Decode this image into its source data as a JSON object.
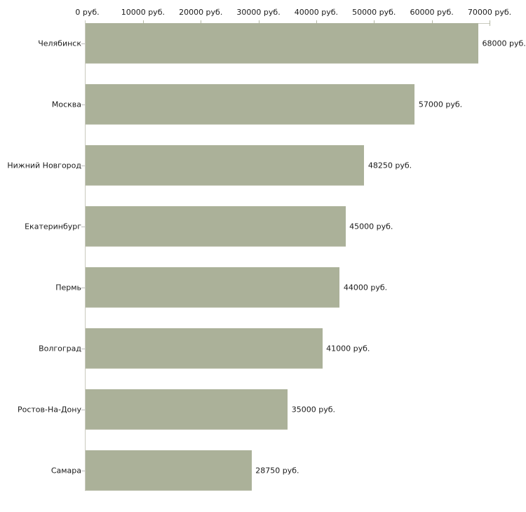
{
  "chart_data": {
    "type": "bar",
    "orientation": "horizontal",
    "title": "",
    "xlabel": "",
    "ylabel": "",
    "unit": "руб.",
    "categories": [
      "Челябинск",
      "Москва",
      "Нижний Новгород",
      "Екатеринбург",
      "Пермь",
      "Волгоград",
      "Ростов-На-Дону",
      "Самара"
    ],
    "values": [
      68000,
      57000,
      48250,
      45000,
      44000,
      41000,
      35000,
      28750
    ],
    "bar_value_labels": [
      "68000 руб.",
      "57000 руб.",
      "48250 руб.",
      "45000 руб.",
      "44000 руб.",
      "41000 руб.",
      "35000 руб.",
      "28750 руб."
    ],
    "xlim": [
      0,
      70000
    ],
    "x_ticks": [
      0,
      10000,
      20000,
      30000,
      40000,
      50000,
      60000,
      70000
    ],
    "x_tick_labels": [
      "0 руб.",
      "10000 руб.",
      "20000 руб.",
      "30000 руб.",
      "40000 руб.",
      "50000 руб.",
      "60000 руб.",
      "70000 руб."
    ],
    "axis_position": "top",
    "grid": false,
    "legend": null,
    "colors": {
      "bar_fill": "#abb199",
      "bar_bottom_edge": "#d2d4c7",
      "axis_line": "#c9cabe",
      "tick_mark": "#b4b8a4",
      "category_dash": "#bcbcbc",
      "text": "#1a1a1a",
      "background": "#ffffff"
    }
  }
}
